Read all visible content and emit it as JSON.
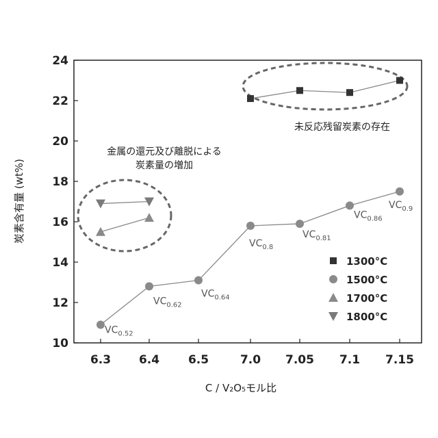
{
  "chart_data": {
    "type": "line",
    "ylabel": "炭素含有量 (wt%)",
    "xlabel": "C / V₂O₅モル比",
    "categories": [
      "6.3",
      "6.4",
      "6.5",
      "7.0",
      "7.05",
      "7.1",
      "7.15"
    ],
    "ylim": [
      10,
      24
    ],
    "yticks": [
      10,
      12,
      14,
      16,
      18,
      20,
      22,
      24
    ],
    "grid": false,
    "legend_position": "bottom-right",
    "series": [
      {
        "name": "1300°C",
        "marker": "square",
        "color": "#333333",
        "points": [
          {
            "x": "7.0",
            "y": 22.1
          },
          {
            "x": "7.05",
            "y": 22.5
          },
          {
            "x": "7.1",
            "y": 22.4
          },
          {
            "x": "7.15",
            "y": 23.0
          }
        ]
      },
      {
        "name": "1500°C",
        "marker": "circle",
        "color": "#8a8a8a",
        "points": [
          {
            "x": "6.3",
            "y": 10.9,
            "label": "VC",
            "sub": "0.52"
          },
          {
            "x": "6.4",
            "y": 12.8,
            "label": "VC",
            "sub": "0.62"
          },
          {
            "x": "6.5",
            "y": 13.1,
            "label": "VC",
            "sub": "0.64"
          },
          {
            "x": "7.0",
            "y": 15.8,
            "label": "VC",
            "sub": "0.8"
          },
          {
            "x": "7.05",
            "y": 15.9,
            "label": "VC",
            "sub": "0.81"
          },
          {
            "x": "7.1",
            "y": 16.8,
            "label": "VC",
            "sub": "0.86"
          },
          {
            "x": "7.15",
            "y": 17.5,
            "label": "VC",
            "sub": "0.9"
          }
        ]
      },
      {
        "name": "1700°C",
        "marker": "triangle-up",
        "color": "#8a8a8a",
        "points": [
          {
            "x": "6.3",
            "y": 15.5
          },
          {
            "x": "6.4",
            "y": 16.2
          }
        ]
      },
      {
        "name": "1800°C",
        "marker": "triangle-down",
        "color": "#7a7a7a",
        "points": [
          {
            "x": "6.3",
            "y": 16.9
          },
          {
            "x": "6.4",
            "y": 17.0
          }
        ]
      }
    ],
    "annotations": [
      {
        "lines": [
          "金属の還元及び離脱による",
          "炭素量の増加"
        ]
      },
      {
        "lines": [
          "未反応残留炭素の存在"
        ]
      }
    ]
  }
}
